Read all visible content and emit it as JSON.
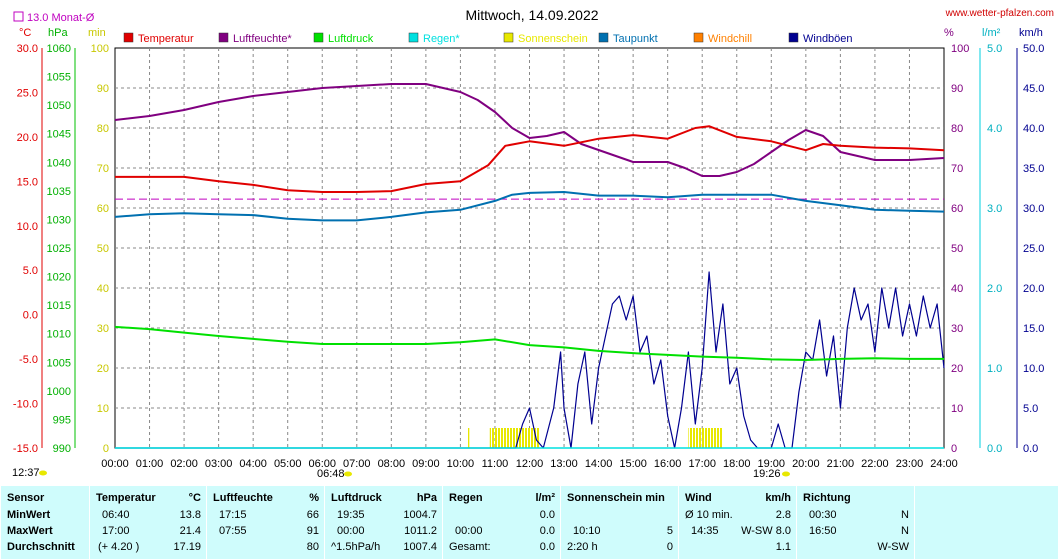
{
  "title": "Mittwoch, 14.09.2022",
  "website": "www.wetter-pfalzen.com",
  "monthly_avg_label": "13.0 Monat-Ø",
  "units": {
    "temp": "°C",
    "press": "hPa",
    "min": "min",
    "pct": "%",
    "rain": "l/m²",
    "wind": "km/h"
  },
  "sunrise": "06:48",
  "sunset": "19:26",
  "sun_peak": "12:37",
  "legend": [
    {
      "name": "Temperatur",
      "color": "#e00000"
    },
    {
      "name": "Luftfeuchte*",
      "color": "#800080"
    },
    {
      "name": "Luftdruck",
      "color": "#00e000"
    },
    {
      "name": "Regen*",
      "color": "#00e0e0"
    },
    {
      "name": "Sonnenschein",
      "color": "#e8e800"
    },
    {
      "name": "Taupunkt",
      "color": "#0070b0"
    },
    {
      "name": "Windchill",
      "color": "#ff8000"
    },
    {
      "name": "Windböen",
      "color": "#000090"
    }
  ],
  "chart_data": {
    "type": "line",
    "x_ticks": [
      "00:00",
      "01:00",
      "02:00",
      "03:00",
      "04:00",
      "05:00",
      "06:00",
      "07:00",
      "08:00",
      "09:00",
      "10:00",
      "11:00",
      "12:00",
      "13:00",
      "14:00",
      "15:00",
      "16:00",
      "17:00",
      "18:00",
      "19:00",
      "20:00",
      "21:00",
      "22:00",
      "23:00",
      "24:00"
    ],
    "axis_temp_ticks": [
      "30.0",
      "25.0",
      "20.0",
      "15.0",
      "10.0",
      "5.0",
      "0.0",
      "-5.0",
      "-10.0",
      "-15.0"
    ],
    "axis_press_ticks": [
      "1060",
      "1055",
      "1050",
      "1045",
      "1040",
      "1035",
      "1030",
      "1025",
      "1020",
      "1015",
      "1010",
      "1005",
      "1000",
      "995",
      "990"
    ],
    "axis_min_ticks": [
      "100",
      "90",
      "80",
      "70",
      "60",
      "50",
      "40",
      "30",
      "20",
      "10",
      "0"
    ],
    "axis_pct_ticks": [
      "100",
      "90",
      "80",
      "70",
      "60",
      "50",
      "40",
      "30",
      "20",
      "10",
      "0"
    ],
    "axis_rain_ticks": [
      "5.0",
      "4.0",
      "3.0",
      "2.0",
      "1.0",
      "0.0"
    ],
    "axis_wind_ticks": [
      "50.0",
      "45.0",
      "40.0",
      "35.0",
      "30.0",
      "25.0",
      "20.0",
      "15.0",
      "10.0",
      "5.0",
      "0.0"
    ],
    "temp_ylim": [
      -15,
      30
    ],
    "press_ylim": [
      990,
      1060
    ],
    "pct_ylim": [
      0,
      100
    ],
    "wind_ylim": [
      0,
      50
    ],
    "monthly_avg_temp": 13.0,
    "series": [
      {
        "name": "Temperatur",
        "color": "#e00000",
        "points": [
          [
            0,
            15.5
          ],
          [
            1,
            15.5
          ],
          [
            2,
            15.5
          ],
          [
            3,
            15.0
          ],
          [
            4,
            14.6
          ],
          [
            5,
            14.0
          ],
          [
            6,
            13.8
          ],
          [
            7,
            13.8
          ],
          [
            8,
            13.9
          ],
          [
            9,
            14.7
          ],
          [
            10,
            15.0
          ],
          [
            10.8,
            16.8
          ],
          [
            11.3,
            19.0
          ],
          [
            12,
            19.5
          ],
          [
            13,
            19.0
          ],
          [
            14,
            19.8
          ],
          [
            15,
            20.2
          ],
          [
            16,
            19.8
          ],
          [
            16.8,
            21.0
          ],
          [
            17.2,
            21.2
          ],
          [
            18,
            20.0
          ],
          [
            19,
            19.5
          ],
          [
            19.5,
            19.0
          ],
          [
            20,
            18.5
          ],
          [
            20.5,
            19.2
          ],
          [
            21,
            19.0
          ],
          [
            22,
            18.8
          ],
          [
            23,
            18.7
          ],
          [
            24,
            18.5
          ]
        ]
      },
      {
        "name": "Luftfeuchte*",
        "color": "#800080",
        "points": [
          [
            0,
            82
          ],
          [
            1,
            83
          ],
          [
            2,
            84.5
          ],
          [
            3,
            86.5
          ],
          [
            4,
            88
          ],
          [
            5,
            89
          ],
          [
            6,
            90
          ],
          [
            7,
            90.5
          ],
          [
            8,
            91
          ],
          [
            9,
            91
          ],
          [
            10,
            89
          ],
          [
            10.5,
            87
          ],
          [
            11,
            84
          ],
          [
            11.5,
            80
          ],
          [
            12,
            77.5
          ],
          [
            12.5,
            78
          ],
          [
            13,
            79
          ],
          [
            13.5,
            76
          ],
          [
            14,
            74.5
          ],
          [
            15,
            71.5
          ],
          [
            16,
            71.5
          ],
          [
            16.5,
            70
          ],
          [
            17,
            68
          ],
          [
            17.5,
            68
          ],
          [
            18,
            69
          ],
          [
            18.5,
            71
          ],
          [
            19,
            74
          ],
          [
            19.5,
            77
          ],
          [
            20,
            79.5
          ],
          [
            20.5,
            78
          ],
          [
            21,
            74
          ],
          [
            22,
            72
          ],
          [
            23,
            72
          ],
          [
            24,
            72.5
          ]
        ]
      },
      {
        "name": "Taupunkt",
        "color": "#0070b0",
        "points": [
          [
            0,
            11.0
          ],
          [
            1,
            11.3
          ],
          [
            2,
            11.4
          ],
          [
            3,
            11.3
          ],
          [
            4,
            11.2
          ],
          [
            5,
            10.8
          ],
          [
            6,
            10.6
          ],
          [
            7,
            10.6
          ],
          [
            8,
            11.0
          ],
          [
            9,
            11.5
          ],
          [
            10,
            11.8
          ],
          [
            11,
            12.8
          ],
          [
            11.5,
            13.5
          ],
          [
            12,
            13.7
          ],
          [
            13,
            13.8
          ],
          [
            14,
            13.4
          ],
          [
            15,
            13.4
          ],
          [
            16,
            13.2
          ],
          [
            17,
            13.5
          ],
          [
            18,
            13.5
          ],
          [
            19,
            13.5
          ],
          [
            20,
            12.8
          ],
          [
            21,
            12.3
          ],
          [
            22,
            11.8
          ],
          [
            23,
            11.7
          ],
          [
            24,
            11.6
          ]
        ]
      },
      {
        "name": "Luftdruck",
        "color": "#00e000",
        "points": [
          [
            0,
            1011.2
          ],
          [
            1,
            1010.8
          ],
          [
            2,
            1010.2
          ],
          [
            3,
            1009.6
          ],
          [
            4,
            1009.1
          ],
          [
            5,
            1008.6
          ],
          [
            6,
            1008.2
          ],
          [
            7,
            1008.2
          ],
          [
            8,
            1008.2
          ],
          [
            9,
            1008.2
          ],
          [
            10,
            1008.5
          ],
          [
            11,
            1009.0
          ],
          [
            12,
            1008.0
          ],
          [
            13,
            1007.6
          ],
          [
            14,
            1007.0
          ],
          [
            15,
            1006.6
          ],
          [
            16,
            1006.3
          ],
          [
            17,
            1006.0
          ],
          [
            18,
            1005.8
          ],
          [
            19,
            1005.5
          ],
          [
            20,
            1005.4
          ],
          [
            21,
            1005.6
          ],
          [
            22,
            1005.7
          ],
          [
            23,
            1005.6
          ],
          [
            24,
            1005.6
          ]
        ]
      },
      {
        "name": "Regen*",
        "color": "#00e0e0",
        "points": [
          [
            0,
            0
          ],
          [
            24,
            0
          ]
        ]
      },
      {
        "name": "Windböen",
        "color": "#000090",
        "points": [
          [
            0,
            0
          ],
          [
            11.6,
            0
          ],
          [
            11.8,
            3
          ],
          [
            12,
            5
          ],
          [
            12.2,
            1
          ],
          [
            12.4,
            0
          ],
          [
            12.7,
            5
          ],
          [
            12.9,
            12
          ],
          [
            13.0,
            5
          ],
          [
            13.2,
            0
          ],
          [
            13.4,
            8
          ],
          [
            13.6,
            12
          ],
          [
            13.8,
            3
          ],
          [
            14.0,
            10
          ],
          [
            14.2,
            14
          ],
          [
            14.4,
            18
          ],
          [
            14.6,
            19
          ],
          [
            14.8,
            16
          ],
          [
            15.0,
            19
          ],
          [
            15.2,
            12
          ],
          [
            15.4,
            14
          ],
          [
            15.6,
            8
          ],
          [
            15.8,
            11
          ],
          [
            16.0,
            4
          ],
          [
            16.2,
            0
          ],
          [
            16.4,
            5
          ],
          [
            16.6,
            12
          ],
          [
            16.8,
            3
          ],
          [
            17.0,
            10
          ],
          [
            17.2,
            22
          ],
          [
            17.4,
            12
          ],
          [
            17.6,
            18
          ],
          [
            17.8,
            8
          ],
          [
            18.0,
            10
          ],
          [
            18.2,
            4
          ],
          [
            18.4,
            1
          ],
          [
            18.6,
            0
          ],
          [
            19.0,
            0
          ],
          [
            19.2,
            3
          ],
          [
            19.4,
            0
          ],
          [
            19.6,
            0
          ],
          [
            19.8,
            7
          ],
          [
            20.0,
            12
          ],
          [
            20.2,
            11
          ],
          [
            20.4,
            16
          ],
          [
            20.6,
            9
          ],
          [
            20.8,
            14
          ],
          [
            21.0,
            5
          ],
          [
            21.2,
            15
          ],
          [
            21.4,
            20
          ],
          [
            21.6,
            16
          ],
          [
            21.8,
            18
          ],
          [
            22.0,
            12
          ],
          [
            22.2,
            20
          ],
          [
            22.4,
            15
          ],
          [
            22.6,
            20
          ],
          [
            22.8,
            14
          ],
          [
            23.0,
            18
          ],
          [
            23.2,
            14
          ],
          [
            23.4,
            19
          ],
          [
            23.6,
            15
          ],
          [
            23.8,
            18
          ],
          [
            24.0,
            10
          ]
        ]
      }
    ],
    "sunshine_bars": [
      {
        "start": 10.2,
        "end": 10.25
      },
      {
        "start": 10.85,
        "end": 12.3
      },
      {
        "start": 16.6,
        "end": 17.6
      }
    ]
  },
  "stats": {
    "labels": {
      "header": "Sensor",
      "min": "MinWert",
      "max": "MaxWert",
      "avg": "Durchschnitt"
    },
    "temperature": {
      "title": "Temperatur",
      "unit": "°C",
      "min_time": "06:40",
      "min_val": "13.8",
      "max_time": "17:00",
      "max_val": "21.4",
      "avg_extra": "(+ 4.20 )",
      "avg_val": "17.19"
    },
    "humidity": {
      "title": "Luftfeuchte",
      "unit": "%",
      "min_time": "17:15",
      "min_val": "66",
      "max_time": "07:55",
      "max_val": "91",
      "avg_val": "80"
    },
    "pressure": {
      "title": "Luftdruck",
      "unit": "hPa",
      "min_time": "19:35",
      "min_val": "1004.7",
      "max_time": "00:00",
      "max_val": "1011.2",
      "avg_extra": "^1.5hPa/h",
      "avg_val": "1007.4"
    },
    "rain": {
      "title": "Regen",
      "unit": "l/m²",
      "min_val": "0.0",
      "max_time": "00:00",
      "max_val": "0.0",
      "avg_label": "Gesamt:",
      "avg_val": "0.0"
    },
    "sunshine": {
      "title": "Sonnenschein min",
      "max_time": "10:10",
      "max_val": "5",
      "avg_extra": "2:20 h",
      "avg_val": "0"
    },
    "wind": {
      "title": "Wind",
      "unit": "km/h",
      "min_label": "Ø 10 min.",
      "min_val": "2.8",
      "max_time": "14:35",
      "max_val": "W-SW 8.0",
      "avg_val": "1.1"
    },
    "direction": {
      "title": "Richtung",
      "min_time": "00:30",
      "min_val": "N",
      "max_time": "16:50",
      "max_val": "N",
      "avg_val": "W-SW"
    }
  }
}
